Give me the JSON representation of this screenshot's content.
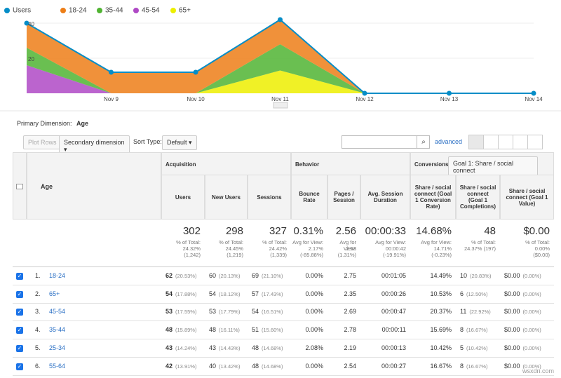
{
  "chart_data": {
    "type": "area",
    "stacked": true,
    "categories": [
      null,
      "Nov 9",
      "Nov 10",
      "Nov 11",
      "Nov 12",
      "Nov 13",
      "Nov 14"
    ],
    "series": [
      {
        "name": "Users",
        "type": "line",
        "color": "#058dc7",
        "values": [
          40,
          12,
          12,
          42,
          0,
          0,
          0
        ]
      },
      {
        "name": "18-24",
        "color": "#ed7e17",
        "values": [
          14,
          12,
          12,
          14,
          0,
          0,
          0
        ]
      },
      {
        "name": "35-44",
        "color": "#50b432",
        "values": [
          10,
          0,
          0,
          15,
          0,
          0,
          0
        ]
      },
      {
        "name": "45-54",
        "color": "#af49c5",
        "values": [
          16,
          0,
          0,
          0,
          0,
          0,
          0
        ]
      },
      {
        "name": "65+",
        "color": "#edef00",
        "values": [
          0,
          0,
          0,
          13,
          0,
          0,
          0
        ]
      }
    ],
    "ylim": [
      0,
      45
    ],
    "yticks": [
      20,
      40
    ],
    "grid": true
  },
  "report": {
    "primary_dimension_label": "Primary Dimension:",
    "primary_dimension": "Age",
    "plot_rows": "Plot Rows",
    "secondary_dimension": "Secondary dimension",
    "sort_type_label": "Sort Type:",
    "sort_type": "Default",
    "advanced": "advanced"
  },
  "table": {
    "dimension_header": "Age",
    "groups": [
      "Acquisition",
      "Behavior",
      "Conversions"
    ],
    "conversion_goal": "Goal 1: Share / social connect",
    "columns": [
      "Users",
      "New Users",
      "Sessions",
      "Bounce Rate",
      "Pages / Session",
      "Avg. Session Duration",
      "Share / social connect (Goal 1 Conversion Rate)",
      "Share / social connect (Goal 1 Completions)",
      "Share / social connect (Goal 1 Value)"
    ],
    "totals": [
      {
        "value": "302",
        "notes": [
          "% of Total:",
          "24.32%",
          "(1,242)"
        ]
      },
      {
        "value": "298",
        "notes": [
          "% of Total:",
          "24.45%",
          "(1,219)"
        ]
      },
      {
        "value": "327",
        "notes": [
          "% of Total:",
          "24.42%",
          "(1,339)"
        ]
      },
      {
        "value": "0.31%",
        "notes": [
          "Avg for View:",
          "2.17%",
          "(-85.88%)"
        ]
      },
      {
        "value": "2.56",
        "notes": [
          "Avg for View:",
          "2.53",
          "(1.31%)"
        ]
      },
      {
        "value": "00:00:33",
        "notes": [
          "Avg for View:",
          "00:00:42",
          "(-19.91%)"
        ]
      },
      {
        "value": "14.68%",
        "notes": [
          "Avg for View:",
          "14.71%",
          "(-0.23%)"
        ]
      },
      {
        "value": "48",
        "notes": [
          "% of Total:",
          "24.37% (197)"
        ]
      },
      {
        "value": "$0.00",
        "notes": [
          "% of Total:",
          "0.00%",
          "($0.00)"
        ]
      }
    ],
    "rows": [
      [
        "1.",
        "18-24",
        "62",
        "(20.53%)",
        "60",
        "(20.13%)",
        "69",
        "(21.10%)",
        "0.00%",
        "2.75",
        "00:01:05",
        "14.49%",
        "10",
        "(20.83%)",
        "$0.00",
        "(0.00%)"
      ],
      [
        "2.",
        "65+",
        "54",
        "(17.88%)",
        "54",
        "(18.12%)",
        "57",
        "(17.43%)",
        "0.00%",
        "2.35",
        "00:00:26",
        "10.53%",
        "6",
        "(12.50%)",
        "$0.00",
        "(0.00%)"
      ],
      [
        "3.",
        "45-54",
        "53",
        "(17.55%)",
        "53",
        "(17.79%)",
        "54",
        "(16.51%)",
        "0.00%",
        "2.69",
        "00:00:47",
        "20.37%",
        "11",
        "(22.92%)",
        "$0.00",
        "(0.00%)"
      ],
      [
        "4.",
        "35-44",
        "48",
        "(15.89%)",
        "48",
        "(16.11%)",
        "51",
        "(15.60%)",
        "0.00%",
        "2.78",
        "00:00:11",
        "15.69%",
        "8",
        "(16.67%)",
        "$0.00",
        "(0.00%)"
      ],
      [
        "5.",
        "25-34",
        "43",
        "(14.24%)",
        "43",
        "(14.43%)",
        "48",
        "(14.68%)",
        "2.08%",
        "2.19",
        "00:00:13",
        "10.42%",
        "5",
        "(10.42%)",
        "$0.00",
        "(0.00%)"
      ],
      [
        "6.",
        "55-64",
        "42",
        "(13.91%)",
        "40",
        "(13.42%)",
        "48",
        "(14.68%)",
        "0.00%",
        "2.54",
        "00:00:27",
        "16.67%",
        "8",
        "(16.67%)",
        "$0.00",
        "(0.00%)"
      ]
    ]
  },
  "watermark": "wsxdn.com"
}
